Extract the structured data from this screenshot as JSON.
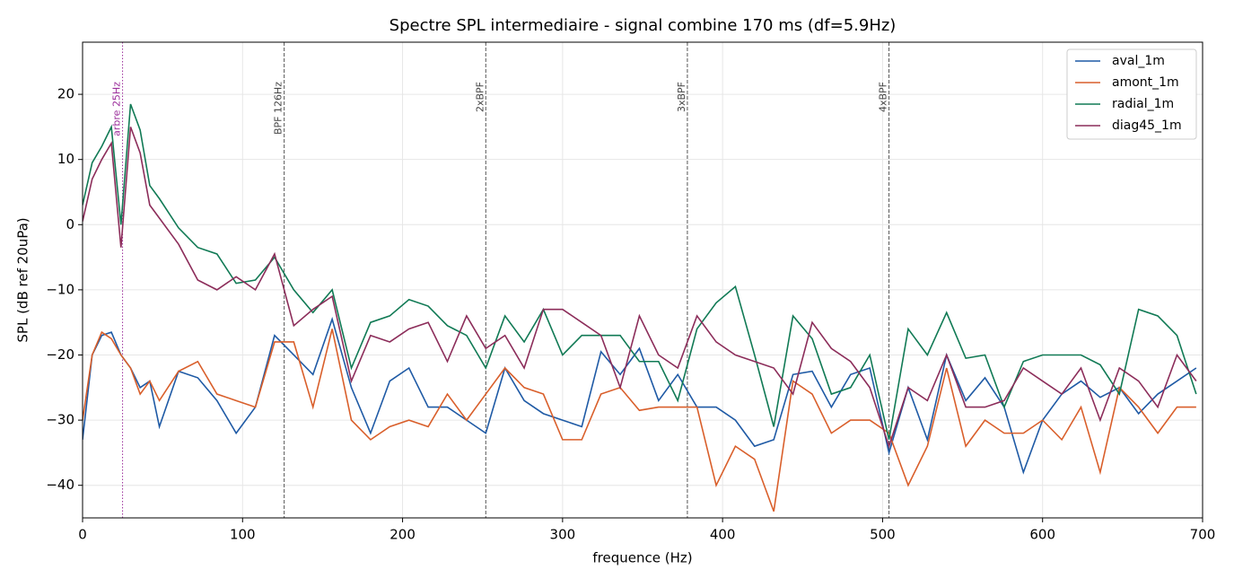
{
  "chart_data": {
    "type": "line",
    "title": "Spectre SPL intermediaire - signal combine 170 ms (df=5.9Hz)",
    "x_label": "frequence (Hz)",
    "y_label": "SPL (dB ref 20uPa)",
    "xlim": [
      0,
      700
    ],
    "ylim": [
      -45,
      28
    ],
    "xticks": [
      0,
      100,
      200,
      300,
      400,
      500,
      600,
      700
    ],
    "yticks": [
      {
        "value": -40,
        "label": "−40"
      },
      {
        "value": -30,
        "label": "−30"
      },
      {
        "value": -20,
        "label": "−20"
      },
      {
        "value": -10,
        "label": "−10"
      },
      0,
      10,
      20
    ],
    "grid": true,
    "legend": "upper right",
    "x": [
      0,
      6,
      12,
      18,
      24,
      30,
      36,
      42,
      48,
      60,
      72,
      84,
      96,
      108,
      120,
      132,
      144,
      156,
      168,
      180,
      192,
      204,
      216,
      228,
      240,
      252,
      264,
      276,
      288,
      300,
      312,
      324,
      336,
      348,
      360,
      372,
      384,
      396,
      408,
      420,
      432,
      444,
      456,
      468,
      480,
      492,
      504,
      516,
      528,
      540,
      552,
      564,
      576,
      588,
      600,
      612,
      624,
      636,
      648,
      660,
      672,
      684,
      696
    ],
    "series": [
      {
        "name": "aval_1m",
        "color": "#1f5aa5",
        "values": [
          -33,
          -20,
          -17,
          -16.5,
          -20,
          -22,
          -25,
          -24,
          -31,
          -22.5,
          -23.5,
          -27,
          -32,
          -28,
          -17,
          -20,
          -23,
          -14.5,
          -25,
          -32,
          -24,
          -22,
          -28,
          -28,
          -30,
          -32,
          -22,
          -27,
          -29,
          -30,
          -31,
          -19.5,
          -23,
          -19,
          -27,
          -23,
          -28,
          -28,
          -30,
          -34,
          -33,
          -23,
          -22.5,
          -28,
          -23,
          -22,
          -35,
          -25,
          -33,
          -20,
          -27,
          -23.5,
          -28,
          -38,
          -30,
          -26,
          -24,
          -26.5,
          -25,
          -29,
          -26,
          -24,
          -22
        ]
      },
      {
        "name": "amont_1m",
        "color": "#d95f2b",
        "values": [
          -30,
          -20,
          -16.5,
          -17.5,
          -20,
          -22,
          -26,
          -24,
          -27,
          -22.5,
          -21,
          -26,
          -27,
          -28,
          -18,
          -18,
          -28,
          -16,
          -30,
          -33,
          -31,
          -30,
          -31,
          -26,
          -30,
          -26,
          -22,
          -25,
          -26,
          -33,
          -33,
          -26,
          -25,
          -28.5,
          -28,
          -28,
          -28,
          -40,
          -34,
          -36,
          -44,
          -24,
          -26,
          -32,
          -30,
          -30,
          -32,
          -40,
          -34,
          -22,
          -34,
          -30,
          -32,
          -32,
          -30,
          -33,
          -28,
          -38,
          -25,
          -28,
          -32,
          -28,
          -28
        ]
      },
      {
        "name": "radial_1m",
        "color": "#117a55",
        "values": [
          3,
          9.5,
          12,
          15,
          0,
          18.5,
          14.5,
          6,
          4,
          -0.5,
          -3.5,
          -4.5,
          -9,
          -8.5,
          -5,
          -10,
          -13.5,
          -10,
          -22,
          -15,
          -14,
          -11.5,
          -12.5,
          -15.5,
          -17,
          -22,
          -14,
          -18,
          -13,
          -20,
          -17,
          -17,
          -17,
          -21,
          -21,
          -27,
          -16,
          -12,
          -9.5,
          -20,
          -31,
          -14,
          -17.5,
          -26,
          -25,
          -20,
          -33,
          -16,
          -20,
          -13.5,
          -20.5,
          -20,
          -28,
          -21,
          -20,
          -20,
          -20,
          -21.5,
          -26,
          -13,
          -14,
          -17,
          -26
        ]
      },
      {
        "name": "diag45_1m",
        "color": "#8c2d5a",
        "values": [
          0.5,
          7,
          10,
          12.5,
          -3.5,
          15,
          11,
          3,
          1,
          -3,
          -8.5,
          -10,
          -8,
          -10,
          -4.5,
          -15.5,
          -13,
          -11,
          -24,
          -17,
          -18,
          -16,
          -15,
          -21,
          -14,
          -19,
          -17,
          -22,
          -13,
          -13,
          -15,
          -17,
          -25,
          -14,
          -20,
          -22,
          -14,
          -18,
          -20,
          -21,
          -22,
          -26,
          -15,
          -19,
          -21,
          -25,
          -34,
          -25,
          -27,
          -20,
          -28,
          -28,
          -27,
          -22,
          -24,
          -26,
          -22,
          -30,
          -22,
          -24,
          -28,
          -20,
          -24
        ]
      }
    ],
    "vlines": [
      {
        "x": 25,
        "label": "arbre 25Hz",
        "color": "#9b2e9b",
        "style": "dotted"
      },
      {
        "x": 126,
        "label": "BPF 126Hz",
        "color": "#555555",
        "style": "dashed"
      },
      {
        "x": 252,
        "label": "2xBPF",
        "color": "#555555",
        "style": "dashed"
      },
      {
        "x": 378,
        "label": "3xBPF",
        "color": "#555555",
        "style": "dashed"
      },
      {
        "x": 504,
        "label": "4xBPF",
        "color": "#555555",
        "style": "dashed"
      }
    ]
  }
}
